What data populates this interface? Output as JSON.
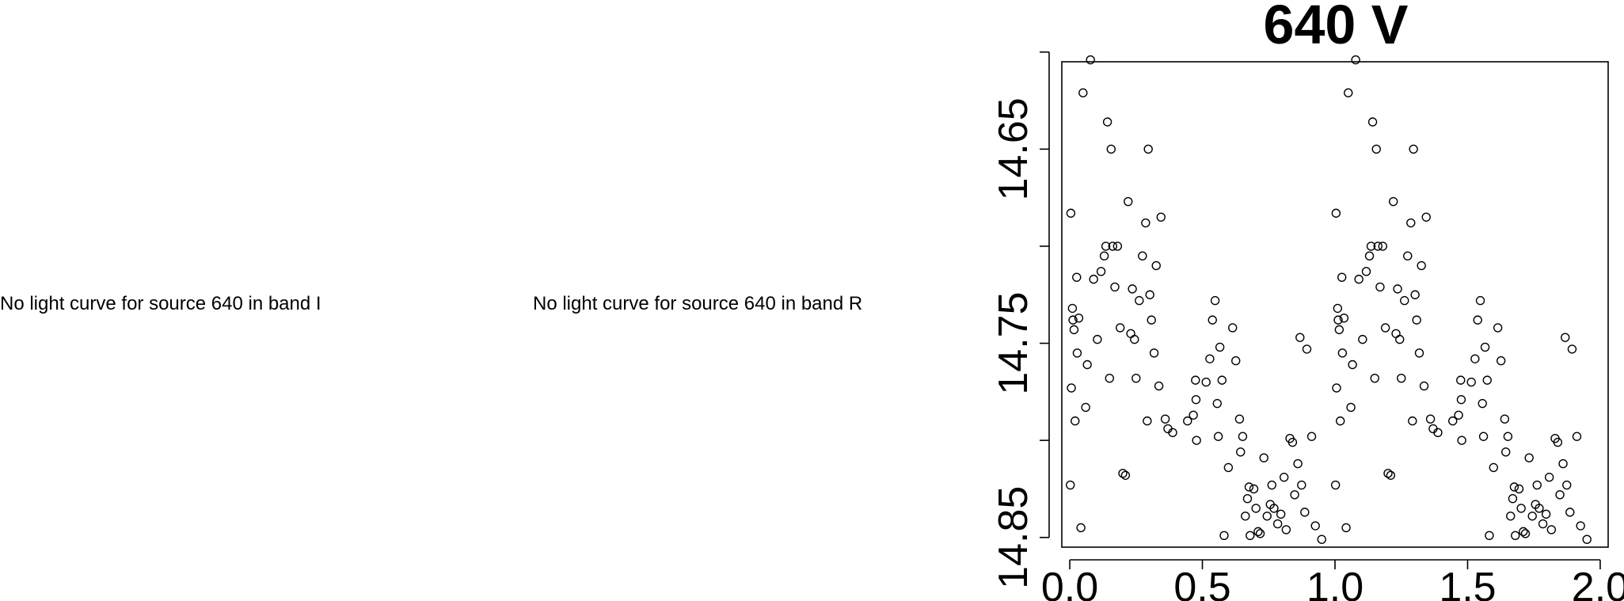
{
  "messages": {
    "band_i": "No light curve for source 640 in band I",
    "band_r": "No light curve for source 640 in band R"
  },
  "chart_data": {
    "type": "scatter",
    "title": "640 V",
    "xlabel": "",
    "ylabel": "",
    "xlim": [
      -0.03,
      2.03
    ],
    "ylim": [
      14.855,
      14.605
    ],
    "y_inverted": true,
    "x_ticks": [
      0.0,
      0.5,
      1.0,
      1.5,
      2.0
    ],
    "x_tick_labels": [
      "0.0",
      "0.5",
      "1.0",
      "1.5",
      "2.0"
    ],
    "y_ticks": [
      14.6,
      14.65,
      14.7,
      14.75,
      14.8,
      14.85
    ],
    "y_tick_labels": [
      "",
      "14.65",
      "",
      "14.75",
      "",
      "14.85"
    ],
    "marker": "open-circle",
    "grid": false,
    "series": [
      {
        "x": [
          0.002,
          0.004,
          0.006,
          0.01,
          0.012,
          0.016,
          0.02,
          0.026,
          0.028,
          0.034,
          0.042,
          0.05,
          0.06,
          0.066,
          0.078,
          0.09,
          0.104,
          0.118,
          0.13,
          0.136,
          0.142,
          0.15,
          0.156,
          0.162,
          0.17,
          0.18,
          0.19,
          0.2,
          0.21,
          0.22,
          0.23,
          0.236,
          0.244,
          0.25,
          0.262,
          0.274,
          0.286,
          0.292,
          0.296,
          0.302,
          0.308,
          0.318,
          0.326,
          0.336,
          0.344,
          0.36,
          0.37,
          0.388,
          0.444,
          0.466,
          0.474,
          0.476,
          0.478,
          0.514,
          0.528,
          0.538,
          0.548,
          0.556,
          0.56,
          0.566,
          0.574,
          0.582,
          0.598,
          0.614,
          0.626,
          0.64,
          0.644,
          0.652,
          0.662,
          0.67,
          0.676,
          0.68,
          0.694,
          0.702,
          0.71,
          0.718,
          0.732,
          0.744,
          0.756,
          0.762,
          0.77,
          0.784,
          0.796,
          0.808,
          0.816,
          0.83,
          0.84,
          0.848,
          0.86,
          0.868,
          0.874,
          0.886,
          0.894,
          0.912,
          0.926,
          0.95
        ],
        "y": [
          14.823,
          14.683,
          14.773,
          14.732,
          14.738,
          14.743,
          14.79,
          14.716,
          14.755,
          14.737,
          14.845,
          14.621,
          14.783,
          14.761,
          14.604,
          14.717,
          14.748,
          14.713,
          14.705,
          14.7,
          14.636,
          14.768,
          14.65,
          14.7,
          14.721,
          14.7,
          14.742,
          14.817,
          14.818,
          14.677,
          14.745,
          14.722,
          14.748,
          14.768,
          14.728,
          14.705,
          14.688,
          14.79,
          14.65,
          14.725,
          14.738,
          14.755,
          14.71,
          14.772,
          14.685,
          14.789,
          14.794,
          14.796,
          14.79,
          14.787,
          14.769,
          14.779,
          14.8,
          14.77,
          14.758,
          14.738,
          14.728,
          14.781,
          14.798,
          14.752,
          14.769,
          14.849,
          14.814,
          14.742,
          14.759,
          14.789,
          14.806,
          14.798,
          14.839,
          14.83,
          14.824,
          14.849,
          14.825,
          14.835,
          14.847,
          14.848,
          14.809,
          14.839,
          14.833,
          14.823,
          14.835,
          14.843,
          14.838,
          14.819,
          14.846,
          14.799,
          14.801,
          14.828,
          14.812,
          14.747,
          14.823,
          14.837,
          14.753,
          14.798,
          14.844,
          14.851
        ]
      }
    ]
  }
}
